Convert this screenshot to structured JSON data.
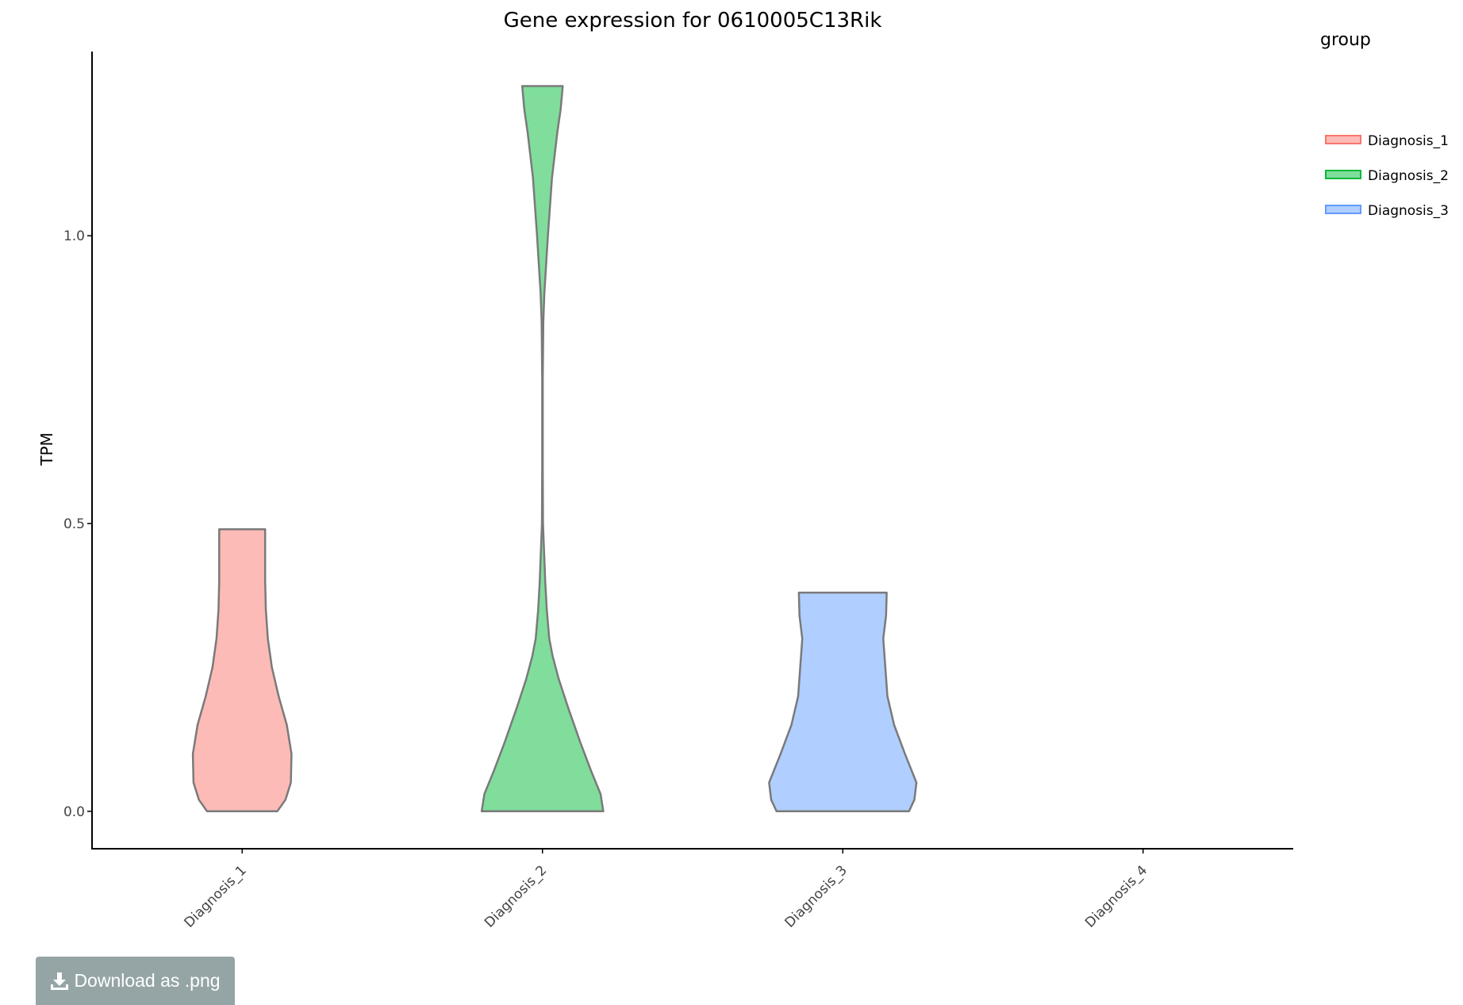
{
  "chart_data": {
    "type": "violin",
    "title": "Gene expression for 0610005C13Rik",
    "xlabel": "",
    "ylabel": "TPM",
    "categories": [
      "Diagnosis_1",
      "Diagnosis_2",
      "Diagnosis_3",
      "Diagnosis_4"
    ],
    "yticks": [
      "0.0",
      "0.5",
      "1.0"
    ],
    "ytick_values": [
      0,
      0.5,
      1.0
    ],
    "ylim": [
      -0.065,
      1.32
    ],
    "grid": false,
    "legend": {
      "title": "group",
      "position": "top-right"
    },
    "series": [
      {
        "name": "Diagnosis_1",
        "color": "#f8766d",
        "category": "Diagnosis_1",
        "min": 0,
        "max": 0.49,
        "profile": [
          [
            0,
            0.26
          ],
          [
            0.02,
            0.32
          ],
          [
            0.05,
            0.36
          ],
          [
            0.1,
            0.365
          ],
          [
            0.15,
            0.33
          ],
          [
            0.2,
            0.27
          ],
          [
            0.25,
            0.22
          ],
          [
            0.3,
            0.19
          ],
          [
            0.35,
            0.175
          ],
          [
            0.4,
            0.17
          ],
          [
            0.45,
            0.17
          ],
          [
            0.49,
            0.17
          ]
        ]
      },
      {
        "name": "Diagnosis_2",
        "color": "#00ba38",
        "category": "Diagnosis_2",
        "min": 0,
        "max": 1.26,
        "profile": [
          [
            0,
            0.45
          ],
          [
            0.03,
            0.43
          ],
          [
            0.07,
            0.36
          ],
          [
            0.12,
            0.28
          ],
          [
            0.18,
            0.19
          ],
          [
            0.23,
            0.12
          ],
          [
            0.27,
            0.075
          ],
          [
            0.3,
            0.05
          ],
          [
            0.35,
            0.032
          ],
          [
            0.4,
            0.02
          ],
          [
            0.5,
            0.004
          ],
          [
            0.6,
            0.002
          ],
          [
            0.75,
            0.002
          ],
          [
            0.85,
            0.006
          ],
          [
            0.9,
            0.014
          ],
          [
            1.0,
            0.04
          ],
          [
            1.1,
            0.07
          ],
          [
            1.18,
            0.11
          ],
          [
            1.22,
            0.135
          ],
          [
            1.26,
            0.15
          ]
        ]
      },
      {
        "name": "Diagnosis_3",
        "color": "#619cff",
        "category": "Diagnosis_3",
        "min": 0,
        "max": 0.38,
        "profile": [
          [
            0,
            0.49
          ],
          [
            0.02,
            0.53
          ],
          [
            0.05,
            0.545
          ],
          [
            0.1,
            0.46
          ],
          [
            0.15,
            0.38
          ],
          [
            0.2,
            0.33
          ],
          [
            0.25,
            0.315
          ],
          [
            0.3,
            0.3
          ],
          [
            0.34,
            0.32
          ],
          [
            0.38,
            0.325
          ]
        ]
      }
    ]
  },
  "ui": {
    "download_label": "Download as .png",
    "download_icon": "download-icon"
  }
}
